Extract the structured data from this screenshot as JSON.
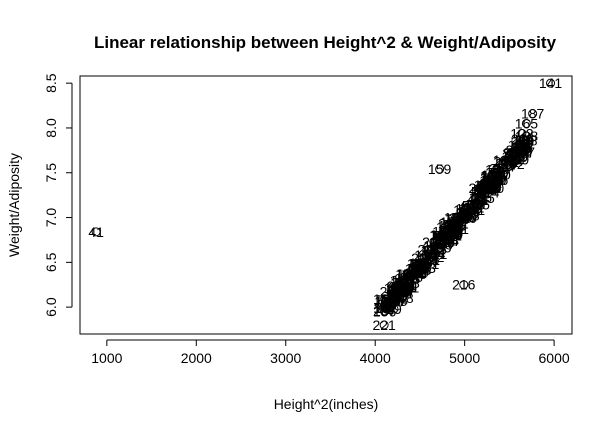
{
  "chart_data": {
    "type": "scatter",
    "title": "Linear relationship between Height^2 & Weight/Adiposity",
    "xlabel": "Height^2(inches)",
    "ylabel": "Weight/Adiposity",
    "xlim": [
      700,
      6200
    ],
    "ylim": [
      5.7,
      8.58
    ],
    "xticks": [
      1000,
      2000,
      3000,
      4000,
      5000,
      6000
    ],
    "xtick_labels": [
      "1000",
      "2000",
      "3000",
      "4000",
      "5000",
      "6000"
    ],
    "yticks": [
      6.0,
      6.5,
      7.0,
      7.5,
      8.0,
      8.5
    ],
    "ytick_labels": [
      "6.0",
      "6.5",
      "7.0",
      "7.5",
      "8.0",
      "8.5"
    ],
    "grid": false,
    "legend": "none",
    "labeled_points": [
      {
        "label": "141",
        "x": 5960,
        "y": 8.5
      },
      {
        "label": "187",
        "x": 5760,
        "y": 8.16
      },
      {
        "label": "165",
        "x": 5690,
        "y": 8.05
      },
      {
        "label": "122",
        "x": 5640,
        "y": 7.94
      },
      {
        "label": "159",
        "x": 4720,
        "y": 7.54
      },
      {
        "label": "41",
        "x": 880,
        "y": 6.84
      },
      {
        "label": "216",
        "x": 4990,
        "y": 6.25
      },
      {
        "label": "29",
        "x": 4210,
        "y": 5.98
      },
      {
        "label": "221",
        "x": 4100,
        "y": 5.8
      },
      {
        "label": "248",
        "x": 4300,
        "y": 6.1
      }
    ],
    "cluster": {
      "count": 240,
      "x_start": 4100,
      "x_end": 5700,
      "slope": 0.00116,
      "x_anchor": 4100,
      "y_anchor": 6.0,
      "spread": 0.09
    }
  }
}
